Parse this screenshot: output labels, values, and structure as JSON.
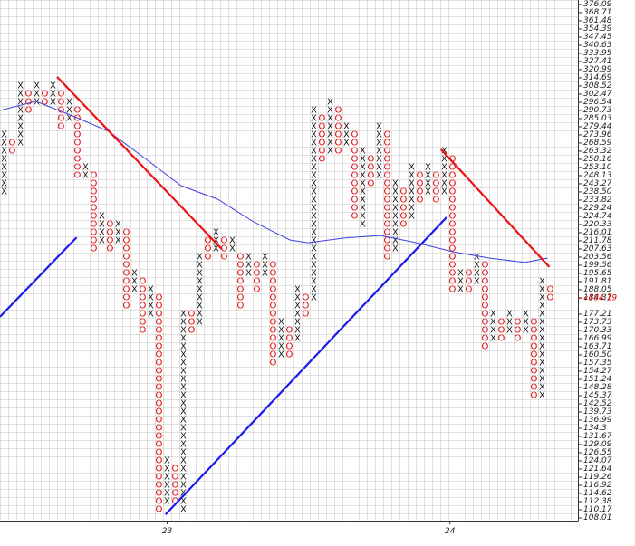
{
  "chart_data": {
    "type": "point_and_figure",
    "log_scale": true,
    "grid": true,
    "colors": {
      "X": "#1a1a1a",
      "O": "#e00000"
    },
    "ylim": [
      107.3,
      380.2
    ],
    "xlim": [
      -0.5,
      70.4
    ],
    "yticks": [
      376.09,
      368.71,
      361.48,
      354.39,
      347.45,
      340.63,
      333.95,
      327.41,
      320.99,
      314.69,
      308.52,
      302.47,
      296.54,
      290.73,
      285.03,
      279.44,
      273.96,
      268.59,
      263.32,
      258.16,
      {
        "value": 253.1,
        "label": "253.10"
      },
      248.13,
      243.27,
      {
        "value": 238.5,
        "label": "238.50"
      },
      233.82,
      229.24,
      224.74,
      220.33,
      216.01,
      211.78,
      207.63,
      203.56,
      199.56,
      195.65,
      191.81,
      188.05,
      184.37,
      177.21,
      173.73,
      170.33,
      166.99,
      163.71,
      {
        "value": 160.5,
        "label": "160.50"
      },
      157.35,
      154.27,
      151.24,
      148.28,
      145.37,
      142.52,
      139.73,
      136.99,
      134.3,
      131.67,
      129.09,
      126.55,
      124.07,
      121.64,
      119.26,
      116.92,
      114.62,
      112.38,
      110.17,
      108.01
    ],
    "xticks": [
      {
        "value": 20,
        "label": "23"
      },
      {
        "value": 54.7,
        "label": "24"
      }
    ],
    "last_price": {
      "value": 184.19,
      "label": "«184.19"
    },
    "columns": [
      {
        "type": "X",
        "high": 273.96,
        "low": 238.5
      },
      {
        "type": "O",
        "high": 268.59,
        "low": 263.32
      },
      {
        "type": "X",
        "high": 308.52,
        "low": 268.59
      },
      {
        "type": "O",
        "high": 302.47,
        "low": 290.73
      },
      {
        "type": "X",
        "high": 308.52,
        "low": 296.54
      },
      {
        "type": "O",
        "high": 302.47,
        "low": 296.54
      },
      {
        "type": "X",
        "high": 308.52,
        "low": 296.54
      },
      {
        "type": "O",
        "high": 302.47,
        "low": 279.44
      },
      {
        "type": "X",
        "high": 296.54,
        "low": 285.03
      },
      {
        "type": "O",
        "high": 290.73,
        "low": 248.13
      },
      {
        "type": "X",
        "high": 253.1,
        "low": 248.13
      },
      {
        "type": "O",
        "high": 248.13,
        "low": 207.63
      },
      {
        "type": "X",
        "high": 224.74,
        "low": 211.78
      },
      {
        "type": "O",
        "high": 220.33,
        "low": 207.63
      },
      {
        "type": "X",
        "high": 220.33,
        "low": 211.78
      },
      {
        "type": "O",
        "high": 216.01,
        "low": 180.75
      },
      {
        "type": "X",
        "high": 195.65,
        "low": 188.05
      },
      {
        "type": "O",
        "high": 191.81,
        "low": 170.33
      },
      {
        "type": "X",
        "high": 188.05,
        "low": 177.21
      },
      {
        "type": "O",
        "high": 184.37,
        "low": 110.17
      },
      {
        "type": "X",
        "high": 124.07,
        "low": 112.38
      },
      {
        "type": "O",
        "high": 121.64,
        "low": 112.38
      },
      {
        "type": "X",
        "high": 177.21,
        "low": 110.17
      },
      {
        "type": "O",
        "high": 177.21,
        "low": 170.33
      },
      {
        "type": "X",
        "high": 203.56,
        "low": 173.73
      },
      {
        "type": "O",
        "high": 211.78,
        "low": 203.56
      },
      {
        "type": "X",
        "high": 216.01,
        "low": 207.63
      },
      {
        "type": "O",
        "high": 211.78,
        "low": 203.56
      },
      {
        "type": "X",
        "high": 211.78,
        "low": 207.63
      },
      {
        "type": "O",
        "high": 203.56,
        "low": 180.75
      },
      {
        "type": "X",
        "high": 203.56,
        "low": 195.65
      },
      {
        "type": "O",
        "high": 199.56,
        "low": 188.05
      },
      {
        "type": "X",
        "high": 203.56,
        "low": 195.65
      },
      {
        "type": "O",
        "high": 199.56,
        "low": 157.35
      },
      {
        "type": "X",
        "high": 173.73,
        "low": 160.5
      },
      {
        "type": "O",
        "high": 170.33,
        "low": 160.5
      },
      {
        "type": "X",
        "high": 188.05,
        "low": 166.99
      },
      {
        "type": "O",
        "high": 184.37,
        "low": 177.21
      },
      {
        "type": "X",
        "high": 290.73,
        "low": 184.37
      },
      {
        "type": "O",
        "high": 285.03,
        "low": 258.16
      },
      {
        "type": "X",
        "high": 296.54,
        "low": 263.32
      },
      {
        "type": "O",
        "high": 290.73,
        "low": 263.32
      },
      {
        "type": "X",
        "high": 279.44,
        "low": 268.59
      },
      {
        "type": "O",
        "high": 273.96,
        "low": 224.74
      },
      {
        "type": "X",
        "high": 263.32,
        "low": 220.33
      },
      {
        "type": "O",
        "high": 258.16,
        "low": 243.27
      },
      {
        "type": "X",
        "high": 279.44,
        "low": 248.13
      },
      {
        "type": "O",
        "high": 273.96,
        "low": 203.56
      },
      {
        "type": "X",
        "high": 243.27,
        "low": 207.63
      },
      {
        "type": "O",
        "high": 238.5,
        "low": 220.33
      },
      {
        "type": "X",
        "high": 253.1,
        "low": 224.74
      },
      {
        "type": "O",
        "high": 248.13,
        "low": 233.82
      },
      {
        "type": "X",
        "high": 253.1,
        "low": 238.5
      },
      {
        "type": "O",
        "high": 248.13,
        "low": 233.82
      },
      {
        "type": "X",
        "high": 263.32,
        "low": 238.5
      },
      {
        "type": "O",
        "high": 258.16,
        "low": 188.05
      },
      {
        "type": "X",
        "high": 195.65,
        "low": 188.05
      },
      {
        "type": "O",
        "high": 195.65,
        "low": 188.05
      },
      {
        "type": "X",
        "high": 203.56,
        "low": 191.81
      },
      {
        "type": "O",
        "high": 199.56,
        "low": 163.71
      },
      {
        "type": "X",
        "high": 177.21,
        "low": 166.99
      },
      {
        "type": "O",
        "high": 173.73,
        "low": 166.99
      },
      {
        "type": "X",
        "high": 177.21,
        "low": 170.33
      },
      {
        "type": "O",
        "high": 173.73,
        "low": 166.99
      },
      {
        "type": "X",
        "high": 177.21,
        "low": 170.33
      },
      {
        "type": "O",
        "high": 173.73,
        "low": 145.37
      },
      {
        "type": "X",
        "high": 191.81,
        "low": 145.37
      },
      {
        "type": "O",
        "high": 188.05,
        "low": 184.37
      }
    ],
    "moving_average": {
      "color": "#4040e0",
      "x": [
        -0.5,
        3.9,
        8.4,
        12.8,
        17.3,
        21.7,
        26.2,
        30.6,
        35.1,
        37.3,
        41.7,
        46.2,
        50.6,
        55.1,
        59.5,
        63.9,
        66.7
      ],
      "values": [
        290.7,
        297.2,
        286.9,
        276.4,
        258.7,
        242.2,
        234.3,
        221.8,
        212.2,
        210.8,
        213.2,
        214.6,
        210.8,
        206.2,
        203.1,
        200.9,
        203.1
      ]
    },
    "trend_lines": [
      {
        "color": "#ee1111",
        "x": [
          6.5,
          26.7
        ],
        "values": [
          315.4,
          207.6
        ]
      },
      {
        "color": "#ee1111",
        "x": [
          53.6,
          66.9
        ],
        "values": [
          264.5,
          198.7
        ]
      },
      {
        "color": "#1a1aee",
        "x": [
          -0.5,
          8.9
        ],
        "values": [
          176.1,
          213.6
        ]
      },
      {
        "color": "#1a1aee",
        "x": [
          19.8,
          54.3
        ],
        "values": [
          108.9,
          224.3
        ]
      }
    ]
  }
}
